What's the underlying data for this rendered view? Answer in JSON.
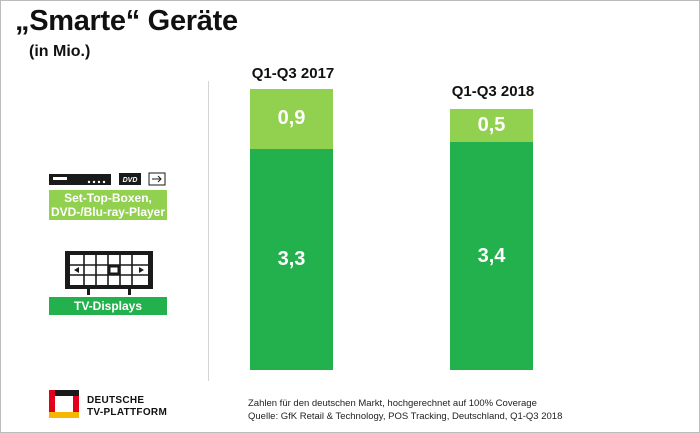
{
  "header": {
    "title": "„Smarte“ Geräte",
    "subtitle": "(in Mio.)"
  },
  "legend": {
    "stb_label_line1": "Set-Top-Boxen,",
    "stb_label_line2": "DVD-/Blu-ray-Player",
    "stb_icon_text": "DVD",
    "tv_label": "TV-Displays"
  },
  "chart_data": {
    "type": "bar",
    "stacked": true,
    "categories": [
      "Q1-Q3 2017",
      "Q1-Q3 2018"
    ],
    "series": [
      {
        "name": "TV-Displays",
        "values": [
          3.3,
          3.4
        ],
        "labels": [
          "3,3",
          "3,4"
        ],
        "color": "#22b14c"
      },
      {
        "name": "Set-Top-Boxen, DVD-/Blu-ray-Player",
        "values": [
          0.9,
          0.5
        ],
        "labels": [
          "0,9",
          "0,5"
        ],
        "color": "#92d050"
      }
    ],
    "ylim": [
      0,
      4.2
    ]
  },
  "footer": {
    "note_line1": "Zahlen für den deutschen Markt, hochgerechnet auf 100% Coverage",
    "note_line2": "Quelle: GfK Retail & Technology, POS Tracking, Deutschland, Q1-Q3 2018",
    "logo_line1": "DEUTSCHE",
    "logo_line2": "TV-PLATTFORM"
  },
  "colors": {
    "light_green": "#92d050",
    "dark_green": "#22b14c",
    "logo_black": "#1a1a1a",
    "logo_red": "#e2001a",
    "logo_yellow": "#f5b800"
  }
}
